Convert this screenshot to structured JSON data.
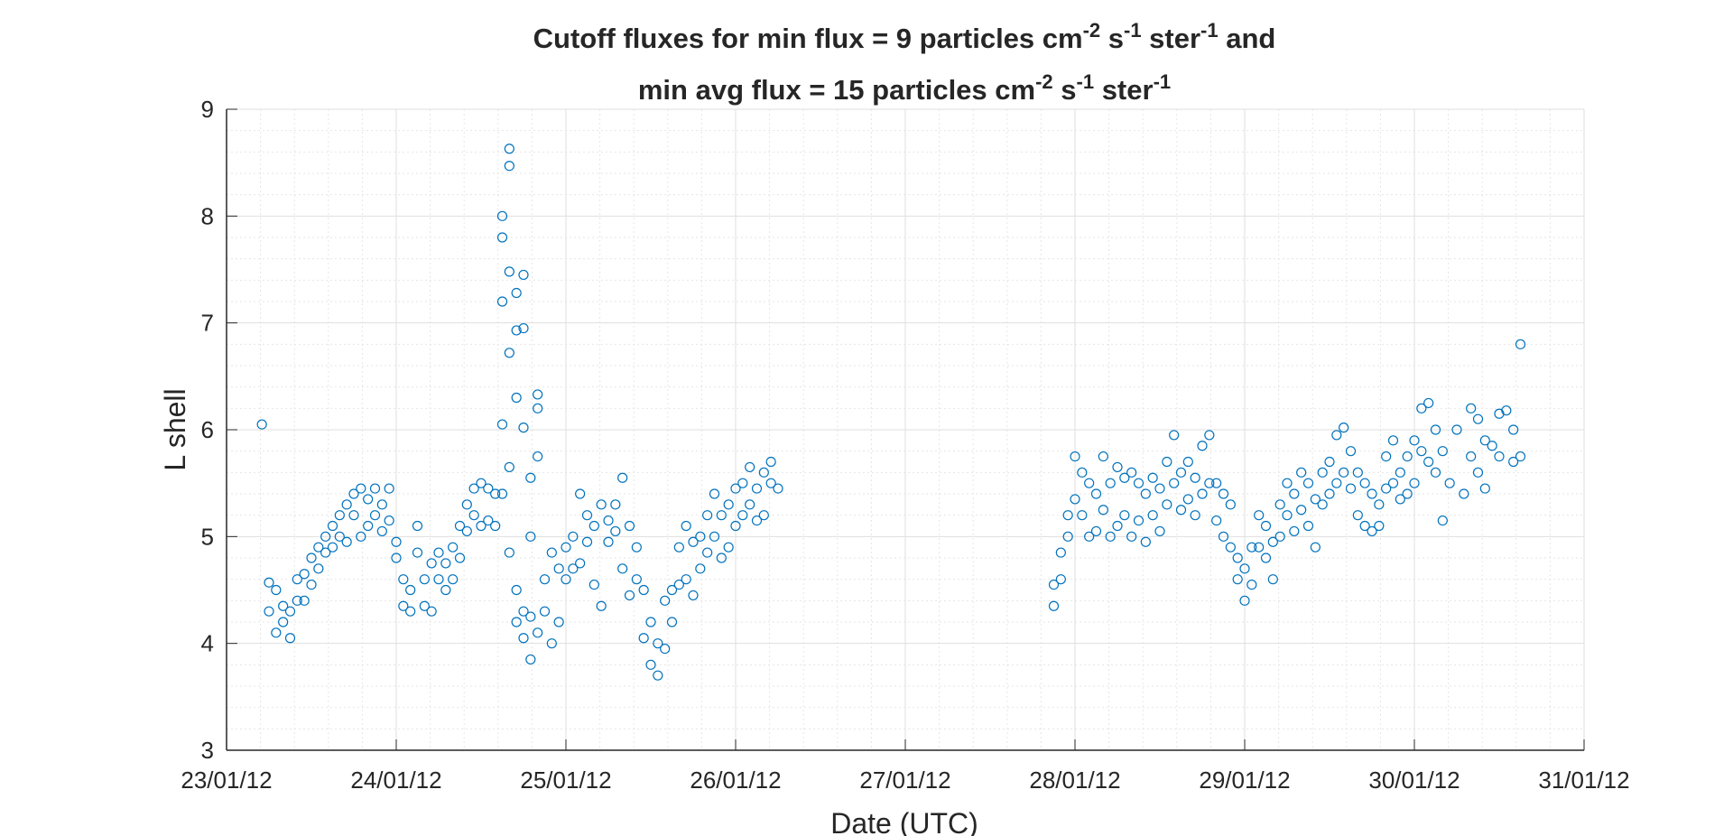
{
  "chart_data": {
    "type": "scatter",
    "title": [
      [
        "Cutoff fluxes for min flux = 9 particles cm",
        "-2",
        " s",
        "-1",
        " ster",
        "-1",
        " and"
      ],
      [
        "min avg flux = 15 particles cm",
        "-2",
        " s",
        "-1",
        " ster",
        "-1"
      ]
    ],
    "x_label": "Date (UTC)",
    "y_label": "L shell",
    "xlim": [
      "2012-01-23",
      "2012-01-31"
    ],
    "xticks": [
      {
        "value": "2012-01-23",
        "label": "23/01/12"
      },
      {
        "value": "2012-01-24",
        "label": "24/01/12"
      },
      {
        "value": "2012-01-25",
        "label": "25/01/12"
      },
      {
        "value": "2012-01-26",
        "label": "26/01/12"
      },
      {
        "value": "2012-01-27",
        "label": "27/01/12"
      },
      {
        "value": "2012-01-28",
        "label": "28/01/12"
      },
      {
        "value": "2012-01-29",
        "label": "29/01/12"
      },
      {
        "value": "2012-01-30",
        "label": "30/01/12"
      },
      {
        "value": "2012-01-31",
        "label": "31/01/12"
      }
    ],
    "ylim": [
      3,
      9
    ],
    "yticks": [
      3,
      4,
      5,
      6,
      7,
      8,
      9
    ],
    "grid": true,
    "minor_grid": true,
    "color": "#0072bd",
    "x": [
      "2012-01-23T05:00",
      "2012-01-23T06:00",
      "2012-01-23T06:00",
      "2012-01-23T07:00",
      "2012-01-23T07:00",
      "2012-01-23T08:00",
      "2012-01-23T08:00",
      "2012-01-23T09:00",
      "2012-01-23T09:00",
      "2012-01-23T10:00",
      "2012-01-23T10:00",
      "2012-01-23T11:00",
      "2012-01-23T11:00",
      "2012-01-23T12:00",
      "2012-01-23T12:00",
      "2012-01-23T13:00",
      "2012-01-23T13:00",
      "2012-01-23T14:00",
      "2012-01-23T14:00",
      "2012-01-23T15:00",
      "2012-01-23T15:00",
      "2012-01-23T16:00",
      "2012-01-23T16:00",
      "2012-01-23T17:00",
      "2012-01-23T17:00",
      "2012-01-23T18:00",
      "2012-01-23T18:00",
      "2012-01-23T19:00",
      "2012-01-23T19:00",
      "2012-01-23T20:00",
      "2012-01-23T20:00",
      "2012-01-23T21:00",
      "2012-01-23T21:00",
      "2012-01-23T22:00",
      "2012-01-23T22:00",
      "2012-01-23T23:00",
      "2012-01-23T23:00",
      "2012-01-24T00:00",
      "2012-01-24T00:00",
      "2012-01-24T01:00",
      "2012-01-24T01:00",
      "2012-01-24T02:00",
      "2012-01-24T02:00",
      "2012-01-24T03:00",
      "2012-01-24T03:00",
      "2012-01-24T04:00",
      "2012-01-24T04:00",
      "2012-01-24T05:00",
      "2012-01-24T05:00",
      "2012-01-24T06:00",
      "2012-01-24T06:00",
      "2012-01-24T07:00",
      "2012-01-24T07:00",
      "2012-01-24T08:00",
      "2012-01-24T08:00",
      "2012-01-24T09:00",
      "2012-01-24T09:00",
      "2012-01-24T10:00",
      "2012-01-24T10:00",
      "2012-01-24T11:00",
      "2012-01-24T11:00",
      "2012-01-24T12:00",
      "2012-01-24T12:00",
      "2012-01-24T13:00",
      "2012-01-24T13:00",
      "2012-01-24T14:00",
      "2012-01-24T14:00",
      "2012-01-24T15:00",
      "2012-01-24T15:00",
      "2012-01-24T15:00",
      "2012-01-24T15:00",
      "2012-01-24T15:00",
      "2012-01-24T16:00",
      "2012-01-24T16:00",
      "2012-01-24T16:00",
      "2012-01-24T16:00",
      "2012-01-24T16:00",
      "2012-01-24T16:00",
      "2012-01-24T17:00",
      "2012-01-24T17:00",
      "2012-01-24T17:00",
      "2012-01-24T17:00",
      "2012-01-24T17:00",
      "2012-01-24T18:00",
      "2012-01-24T18:00",
      "2012-01-24T18:00",
      "2012-01-24T18:00",
      "2012-01-24T18:00",
      "2012-01-24T19:00",
      "2012-01-24T19:00",
      "2012-01-24T19:00",
      "2012-01-24T19:00",
      "2012-01-24T20:00",
      "2012-01-24T20:00",
      "2012-01-24T20:00",
      "2012-01-24T20:00",
      "2012-01-24T21:00",
      "2012-01-24T21:00",
      "2012-01-24T22:00",
      "2012-01-24T22:00",
      "2012-01-24T23:00",
      "2012-01-24T23:00",
      "2012-01-25T00:00",
      "2012-01-25T00:00",
      "2012-01-25T01:00",
      "2012-01-25T01:00",
      "2012-01-25T02:00",
      "2012-01-25T02:00",
      "2012-01-25T03:00",
      "2012-01-25T03:00",
      "2012-01-25T04:00",
      "2012-01-25T04:00",
      "2012-01-25T05:00",
      "2012-01-25T05:00",
      "2012-01-25T06:00",
      "2012-01-25T06:00",
      "2012-01-25T07:00",
      "2012-01-25T07:00",
      "2012-01-25T08:00",
      "2012-01-25T08:00",
      "2012-01-25T09:00",
      "2012-01-25T09:00",
      "2012-01-25T10:00",
      "2012-01-25T10:00",
      "2012-01-25T11:00",
      "2012-01-25T11:00",
      "2012-01-25T12:00",
      "2012-01-25T12:00",
      "2012-01-25T13:00",
      "2012-01-25T13:00",
      "2012-01-25T14:00",
      "2012-01-25T14:00",
      "2012-01-25T15:00",
      "2012-01-25T15:00",
      "2012-01-25T16:00",
      "2012-01-25T16:00",
      "2012-01-25T17:00",
      "2012-01-25T17:00",
      "2012-01-25T18:00",
      "2012-01-25T18:00",
      "2012-01-25T19:00",
      "2012-01-25T19:00",
      "2012-01-25T20:00",
      "2012-01-25T20:00",
      "2012-01-25T21:00",
      "2012-01-25T21:00",
      "2012-01-25T22:00",
      "2012-01-25T22:00",
      "2012-01-25T23:00",
      "2012-01-25T23:00",
      "2012-01-26T00:00",
      "2012-01-26T00:00",
      "2012-01-26T01:00",
      "2012-01-26T01:00",
      "2012-01-26T02:00",
      "2012-01-26T02:00",
      "2012-01-26T03:00",
      "2012-01-26T03:00",
      "2012-01-26T04:00",
      "2012-01-26T04:00",
      "2012-01-26T05:00",
      "2012-01-26T05:00",
      "2012-01-26T06:00",
      "2012-01-27T21:00",
      "2012-01-27T21:00",
      "2012-01-27T22:00",
      "2012-01-27T22:00",
      "2012-01-27T23:00",
      "2012-01-27T23:00",
      "2012-01-28T00:00",
      "2012-01-28T00:00",
      "2012-01-28T01:00",
      "2012-01-28T01:00",
      "2012-01-28T02:00",
      "2012-01-28T02:00",
      "2012-01-28T03:00",
      "2012-01-28T03:00",
      "2012-01-28T04:00",
      "2012-01-28T04:00",
      "2012-01-28T05:00",
      "2012-01-28T05:00",
      "2012-01-28T06:00",
      "2012-01-28T06:00",
      "2012-01-28T07:00",
      "2012-01-28T07:00",
      "2012-01-28T08:00",
      "2012-01-28T08:00",
      "2012-01-28T09:00",
      "2012-01-28T09:00",
      "2012-01-28T10:00",
      "2012-01-28T10:00",
      "2012-01-28T11:00",
      "2012-01-28T11:00",
      "2012-01-28T12:00",
      "2012-01-28T12:00",
      "2012-01-28T13:00",
      "2012-01-28T13:00",
      "2012-01-28T14:00",
      "2012-01-28T14:00",
      "2012-01-28T15:00",
      "2012-01-28T15:00",
      "2012-01-28T16:00",
      "2012-01-28T16:00",
      "2012-01-28T17:00",
      "2012-01-28T17:00",
      "2012-01-28T18:00",
      "2012-01-28T18:00",
      "2012-01-28T19:00",
      "2012-01-28T19:00",
      "2012-01-28T20:00",
      "2012-01-28T20:00",
      "2012-01-28T21:00",
      "2012-01-28T21:00",
      "2012-01-28T22:00",
      "2012-01-28T22:00",
      "2012-01-28T23:00",
      "2012-01-28T23:00",
      "2012-01-29T00:00",
      "2012-01-29T00:00",
      "2012-01-29T01:00",
      "2012-01-29T01:00",
      "2012-01-29T02:00",
      "2012-01-29T02:00",
      "2012-01-29T03:00",
      "2012-01-29T03:00",
      "2012-01-29T04:00",
      "2012-01-29T04:00",
      "2012-01-29T05:00",
      "2012-01-29T05:00",
      "2012-01-29T06:00",
      "2012-01-29T06:00",
      "2012-01-29T07:00",
      "2012-01-29T07:00",
      "2012-01-29T08:00",
      "2012-01-29T08:00",
      "2012-01-29T09:00",
      "2012-01-29T09:00",
      "2012-01-29T10:00",
      "2012-01-29T10:00",
      "2012-01-29T11:00",
      "2012-01-29T11:00",
      "2012-01-29T12:00",
      "2012-01-29T12:00",
      "2012-01-29T13:00",
      "2012-01-29T13:00",
      "2012-01-29T14:00",
      "2012-01-29T14:00",
      "2012-01-29T15:00",
      "2012-01-29T15:00",
      "2012-01-29T16:00",
      "2012-01-29T16:00",
      "2012-01-29T17:00",
      "2012-01-29T17:00",
      "2012-01-29T18:00",
      "2012-01-29T18:00",
      "2012-01-29T19:00",
      "2012-01-29T19:00",
      "2012-01-29T20:00",
      "2012-01-29T20:00",
      "2012-01-29T21:00",
      "2012-01-29T21:00",
      "2012-01-29T22:00",
      "2012-01-29T22:00",
      "2012-01-29T23:00",
      "2012-01-29T23:00",
      "2012-01-30T00:00",
      "2012-01-30T00:00",
      "2012-01-30T01:00",
      "2012-01-30T01:00",
      "2012-01-30T02:00",
      "2012-01-30T02:00",
      "2012-01-30T03:00",
      "2012-01-30T03:00",
      "2012-01-30T04:00",
      "2012-01-30T04:00",
      "2012-01-30T05:00",
      "2012-01-30T06:00",
      "2012-01-30T07:00",
      "2012-01-30T08:00",
      "2012-01-30T08:00",
      "2012-01-30T09:00",
      "2012-01-30T09:00",
      "2012-01-30T10:00",
      "2012-01-30T10:00",
      "2012-01-30T11:00",
      "2012-01-30T12:00",
      "2012-01-30T12:00",
      "2012-01-30T13:00",
      "2012-01-30T14:00",
      "2012-01-30T14:00",
      "2012-01-30T15:00",
      "2012-01-30T15:00"
    ],
    "values": [
      6.05,
      4.57,
      4.3,
      4.5,
      4.1,
      4.2,
      4.35,
      4.05,
      4.3,
      4.4,
      4.6,
      4.65,
      4.4,
      4.8,
      4.55,
      4.9,
      4.7,
      5.0,
      4.85,
      5.1,
      4.9,
      5.2,
      5.0,
      5.3,
      4.95,
      5.4,
      5.2,
      5.45,
      5.0,
      5.35,
      5.1,
      5.45,
      5.2,
      5.3,
      5.05,
      5.45,
      5.15,
      4.95,
      4.8,
      4.6,
      4.35,
      4.5,
      4.3,
      5.1,
      4.85,
      4.6,
      4.35,
      4.75,
      4.3,
      4.85,
      4.6,
      4.75,
      4.5,
      4.9,
      4.6,
      5.1,
      4.8,
      5.3,
      5.05,
      5.45,
      5.2,
      5.5,
      5.1,
      5.45,
      5.15,
      5.4,
      5.1,
      8.0,
      7.8,
      7.2,
      5.4,
      6.05,
      8.63,
      8.47,
      7.48,
      6.72,
      5.65,
      4.85,
      7.28,
      6.93,
      6.3,
      4.5,
      4.2,
      7.45,
      6.95,
      6.02,
      4.3,
      4.05,
      5.55,
      5.0,
      4.25,
      3.85,
      6.33,
      6.2,
      5.75,
      4.1,
      4.6,
      4.3,
      4.85,
      4.0,
      4.7,
      4.2,
      4.9,
      4.6,
      5.0,
      4.7,
      5.4,
      4.75,
      5.2,
      4.95,
      5.1,
      4.55,
      5.3,
      4.35,
      4.95,
      5.15,
      5.3,
      5.05,
      5.55,
      4.7,
      5.1,
      4.45,
      4.9,
      4.6,
      4.5,
      4.05,
      4.2,
      3.8,
      4.0,
      3.7,
      4.4,
      3.95,
      4.5,
      4.2,
      4.9,
      4.55,
      5.1,
      4.6,
      4.95,
      4.45,
      5.0,
      4.7,
      5.2,
      4.85,
      5.4,
      5.0,
      5.2,
      4.8,
      5.3,
      4.9,
      5.45,
      5.1,
      5.5,
      5.2,
      5.65,
      5.3,
      5.45,
      5.15,
      5.6,
      5.2,
      5.7,
      5.5,
      5.45,
      4.35,
      4.55,
      4.85,
      4.6,
      5.2,
      5.0,
      5.75,
      5.35,
      5.6,
      5.2,
      5.5,
      5.0,
      5.4,
      5.05,
      5.75,
      5.25,
      5.5,
      5.0,
      5.65,
      5.1,
      5.55,
      5.2,
      5.6,
      5.0,
      5.5,
      5.15,
      5.4,
      4.95,
      5.55,
      5.2,
      5.45,
      5.05,
      5.7,
      5.3,
      5.95,
      5.5,
      5.6,
      5.25,
      5.7,
      5.35,
      5.55,
      5.2,
      5.85,
      5.4,
      5.95,
      5.5,
      5.5,
      5.15,
      5.4,
      5.0,
      5.3,
      4.9,
      4.8,
      4.6,
      4.7,
      4.4,
      4.9,
      4.55,
      5.2,
      4.9,
      5.1,
      4.8,
      4.95,
      4.6,
      5.3,
      5.0,
      5.5,
      5.2,
      5.4,
      5.05,
      5.6,
      5.25,
      5.5,
      5.1,
      5.35,
      4.9,
      5.6,
      5.3,
      5.7,
      5.4,
      5.95,
      5.5,
      6.02,
      5.6,
      5.8,
      5.45,
      5.6,
      5.2,
      5.5,
      5.1,
      5.4,
      5.05,
      5.3,
      5.1,
      5.75,
      5.45,
      5.9,
      5.5,
      5.6,
      5.35,
      5.75,
      5.4,
      5.9,
      5.5,
      6.2,
      5.8,
      6.25,
      5.7,
      6.0,
      5.6,
      5.8,
      5.15,
      5.5,
      6.0,
      5.4,
      6.2,
      5.75,
      6.1,
      5.6,
      5.9,
      5.45,
      5.85,
      6.15,
      5.75,
      6.18,
      6.0,
      5.7,
      6.8,
      5.75
    ]
  }
}
